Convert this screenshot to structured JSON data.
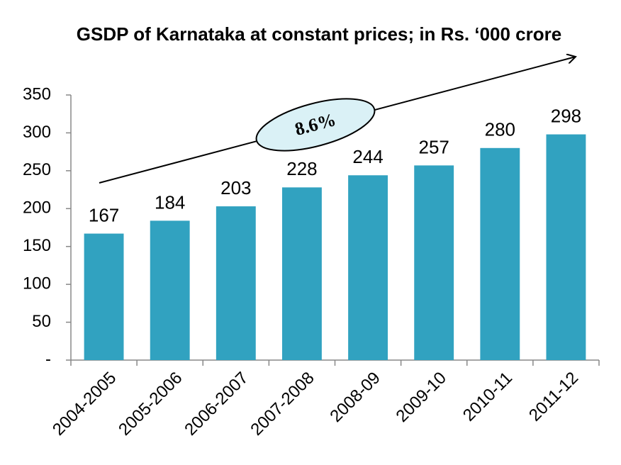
{
  "chart_data": {
    "type": "bar",
    "title": "GSDP of Karnataka at constant prices; in Rs. ‘000 crore",
    "categories": [
      "2004-2005",
      "2005-2006",
      "2006-2007",
      "2007-2008",
      "2008-09",
      "2009-10",
      "2010-11",
      "2011-12"
    ],
    "values": [
      167,
      184,
      203,
      228,
      244,
      257,
      280,
      298
    ],
    "color": "#31a2c0",
    "ylim": [
      0,
      350
    ],
    "yticks": [
      {
        "value": 0,
        "label": "-"
      },
      50,
      100,
      150,
      200,
      250,
      300,
      350
    ],
    "annotation": "8.6%"
  }
}
